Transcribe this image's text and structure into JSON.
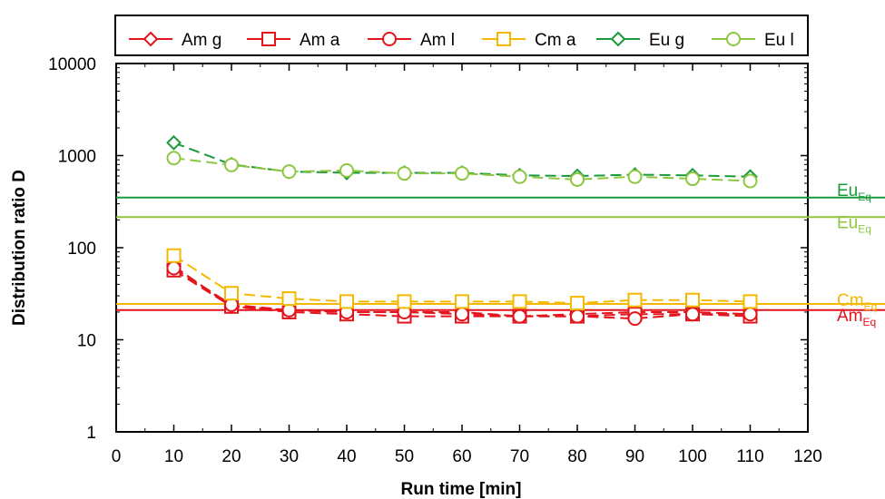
{
  "chart_data": {
    "type": "line",
    "xlabel": "Run time [min]",
    "ylabel": "Distribution ratio D",
    "xlim": [
      0,
      120
    ],
    "ylim": [
      1,
      10000
    ],
    "yscale": "log",
    "x_ticks": [
      0,
      10,
      20,
      30,
      40,
      50,
      60,
      70,
      80,
      90,
      100,
      110,
      120
    ],
    "y_ticks": [
      1,
      10,
      100,
      1000,
      10000
    ],
    "x_tick_labels": [
      "0",
      "10",
      "20",
      "30",
      "40",
      "50",
      "60",
      "70",
      "80",
      "90",
      "100",
      "110",
      "120"
    ],
    "y_tick_labels": [
      "1",
      "10",
      "100",
      "1000",
      "10000"
    ],
    "legend_position": "top",
    "grid": false,
    "x": [
      10,
      20,
      30,
      40,
      50,
      60,
      70,
      80,
      90,
      100,
      110
    ],
    "series": [
      {
        "name": "Am g",
        "color": "#e3141c",
        "marker": "diamond",
        "values": [
          63,
          23,
          21,
          20,
          20,
          20,
          18,
          19,
          20,
          20,
          19
        ]
      },
      {
        "name": "Am a",
        "color": "#e3141c",
        "marker": "square",
        "values": [
          57,
          23,
          20,
          19,
          18,
          18,
          18,
          18,
          19,
          19,
          18
        ]
      },
      {
        "name": "Am l",
        "color": "#e3141c",
        "marker": "circle",
        "values": [
          60,
          24,
          21,
          20,
          20,
          19,
          18,
          18,
          17,
          19,
          19
        ]
      },
      {
        "name": "Cm a",
        "color": "#f5b800",
        "marker": "square",
        "values": [
          82,
          32,
          28,
          26,
          26,
          26,
          26,
          25,
          27,
          27,
          26
        ]
      },
      {
        "name": "Eu g",
        "color": "#1a9a3a",
        "marker": "diamond",
        "values": [
          1380,
          800,
          670,
          650,
          650,
          650,
          610,
          600,
          620,
          610,
          590
        ]
      },
      {
        "name": "Eu l",
        "color": "#8dc63f",
        "marker": "circle",
        "values": [
          940,
          790,
          670,
          690,
          640,
          640,
          590,
          550,
          590,
          560,
          530
        ]
      }
    ],
    "reference_lines": [
      {
        "base": "Eu",
        "sub": "Eq",
        "value": 350,
        "color": "#1a9a3a"
      },
      {
        "base": "Eu",
        "sub": "Eq",
        "value": 215,
        "color": "#8dc63f"
      },
      {
        "base": "Cm",
        "sub": "Eq",
        "value": 24.5,
        "color": "#f5b800"
      },
      {
        "base": "Am",
        "sub": "Eq",
        "value": 21,
        "color": "#e3141c"
      }
    ]
  }
}
